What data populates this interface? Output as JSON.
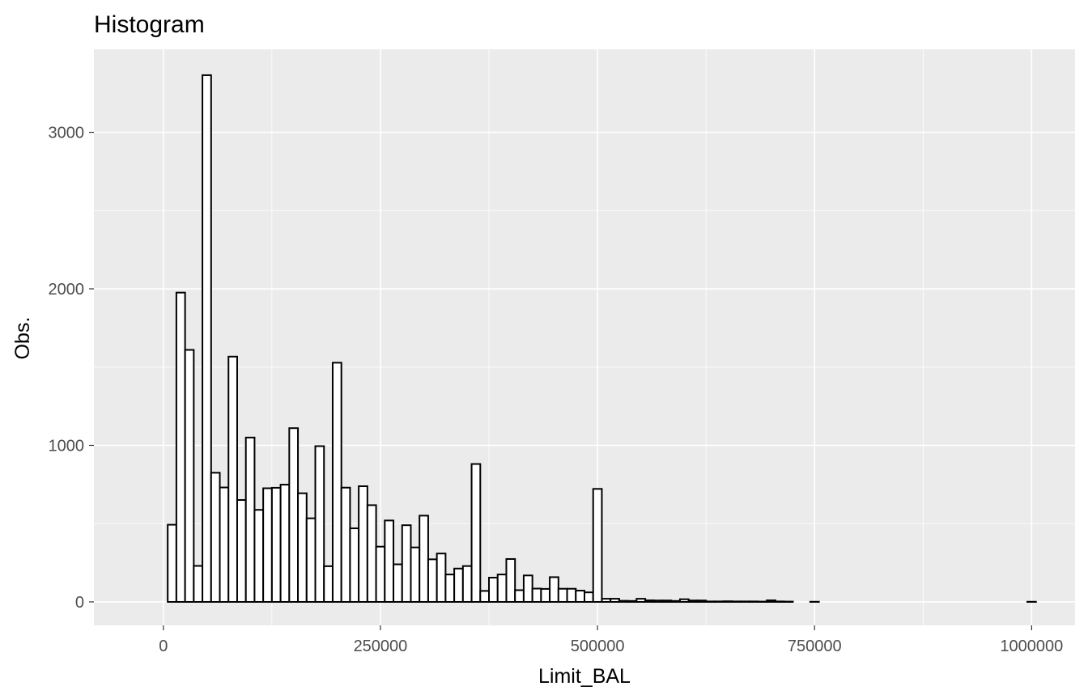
{
  "chart_data": {
    "type": "bar",
    "title": "Histogram",
    "xlabel": "Limit_BAL",
    "ylabel": "Obs.",
    "xlim": [
      -80000,
      1050000
    ],
    "ylim": [
      -150,
      3530
    ],
    "x_ticks": [
      0,
      250000,
      500000,
      750000,
      1000000
    ],
    "x_tick_labels": [
      "0",
      "250000",
      "500000",
      "750000",
      "1000000"
    ],
    "y_ticks": [
      0,
      1000,
      2000,
      3000
    ],
    "y_tick_labels": [
      "0",
      "1000",
      "2000",
      "3000"
    ],
    "x_minor_ticks": [
      125000,
      375000,
      625000,
      875000
    ],
    "y_minor_ticks": [
      500,
      1500,
      2500
    ],
    "bin_width": 10000,
    "grid": true,
    "legend": "none",
    "colors": {
      "panel": "#ebebeb",
      "grid": "#ffffff",
      "bar_fill": "#ffffff",
      "bar_stroke": "#000000"
    },
    "x": [
      10000,
      20000,
      30000,
      40000,
      50000,
      60000,
      70000,
      80000,
      90000,
      100000,
      110000,
      120000,
      130000,
      140000,
      150000,
      160000,
      170000,
      180000,
      190000,
      200000,
      210000,
      220000,
      230000,
      240000,
      250000,
      260000,
      270000,
      280000,
      290000,
      300000,
      310000,
      320000,
      330000,
      340000,
      350000,
      360000,
      370000,
      380000,
      390000,
      400000,
      410000,
      420000,
      430000,
      440000,
      450000,
      460000,
      470000,
      480000,
      490000,
      500000,
      510000,
      520000,
      530000,
      540000,
      550000,
      560000,
      570000,
      580000,
      590000,
      600000,
      610000,
      620000,
      630000,
      640000,
      650000,
      660000,
      670000,
      680000,
      690000,
      700000,
      710000,
      720000,
      730000,
      740000,
      750000,
      760000,
      770000,
      780000,
      790000,
      800000,
      810000,
      820000,
      830000,
      840000,
      850000,
      860000,
      870000,
      880000,
      890000,
      900000,
      910000,
      920000,
      930000,
      940000,
      950000,
      960000,
      970000,
      980000,
      990000,
      1000000
    ],
    "values": [
      493,
      1976,
      1610,
      230,
      3365,
      825,
      731,
      1567,
      651,
      1050,
      588,
      726,
      729,
      749,
      1110,
      694,
      534,
      995,
      228,
      1528,
      730,
      470,
      739,
      618,
      353,
      520,
      240,
      490,
      348,
      551,
      272,
      309,
      175,
      213,
      229,
      881,
      70,
      155,
      175,
      274,
      75,
      169,
      85,
      83,
      158,
      84,
      84,
      72,
      61,
      722,
      20,
      20,
      7,
      6,
      20,
      10,
      9,
      9,
      6,
      17,
      9,
      9,
      3,
      3,
      4,
      3,
      3,
      3,
      2,
      10,
      3,
      2,
      0,
      0,
      1,
      0,
      0,
      0,
      0,
      0,
      0,
      0,
      0,
      0,
      0,
      0,
      0,
      0,
      0,
      0,
      0,
      0,
      0,
      0,
      0,
      0,
      0,
      0,
      0,
      1
    ]
  }
}
